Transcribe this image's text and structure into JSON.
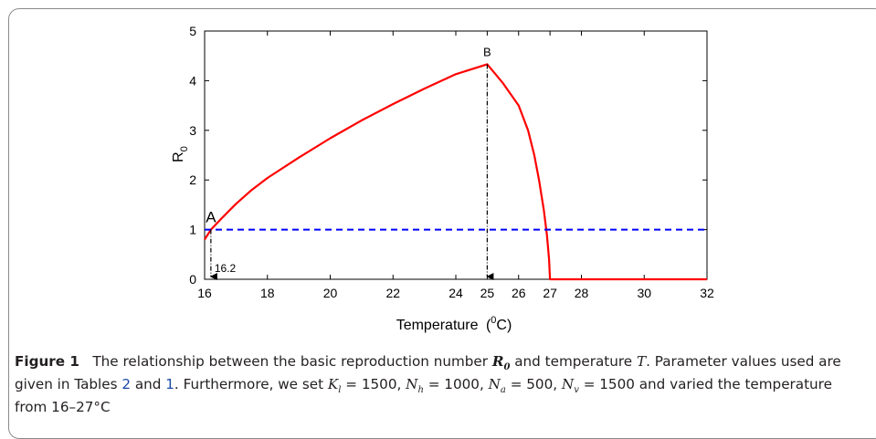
{
  "chart_data": {
    "type": "line",
    "xlabel": "Temperature",
    "xlabel_unit_base": "0",
    "xlabel_unit_suffix": "C",
    "ylabel_main": "R",
    "ylabel_sub": "0",
    "xlim": [
      16,
      32
    ],
    "ylim": [
      0,
      5
    ],
    "x_ticks": [
      "16",
      "18",
      "20",
      "22",
      "24",
      "25",
      "26",
      "27",
      "28",
      "30",
      "32"
    ],
    "y_ticks": [
      "0",
      "1",
      "2",
      "3",
      "4",
      "5"
    ],
    "grid": false,
    "series": [
      {
        "color": "#ff0000",
        "style": "solid",
        "points": [
          [
            16.0,
            0.8
          ],
          [
            16.2,
            1.0
          ],
          [
            16.5,
            1.2
          ],
          [
            17.0,
            1.52
          ],
          [
            17.5,
            1.8
          ],
          [
            18.0,
            2.04
          ],
          [
            19.0,
            2.45
          ],
          [
            20.0,
            2.84
          ],
          [
            21.0,
            3.2
          ],
          [
            22.0,
            3.53
          ],
          [
            23.0,
            3.84
          ],
          [
            24.0,
            4.13
          ],
          [
            25.0,
            4.33
          ],
          [
            25.5,
            3.95
          ],
          [
            26.0,
            3.5
          ],
          [
            26.3,
            3.0
          ],
          [
            26.5,
            2.5
          ],
          [
            26.65,
            2.0
          ],
          [
            26.8,
            1.4
          ],
          [
            26.9,
            0.9
          ],
          [
            26.97,
            0.4
          ],
          [
            27.0,
            0.0
          ],
          [
            32.0,
            0.0
          ]
        ]
      },
      {
        "color": "#0000ff",
        "style": "dashed",
        "points": [
          [
            16.0,
            1.0
          ],
          [
            32.0,
            1.0
          ]
        ]
      }
    ],
    "annotations": [
      {
        "label": "A",
        "x": 16.2,
        "y": 1.0,
        "marker_label": "16.2"
      },
      {
        "label": "B",
        "x": 25.0,
        "y": 4.33
      }
    ]
  },
  "caption": {
    "figure_label": "Figure 1",
    "text_1": "The relationship between the basic reproduction number",
    "r0_symbol": "R",
    "r0_sub": "0",
    "text_2": "and temperature",
    "t_symbol": "T",
    "text_3": ". Parameter values used are given in Tables",
    "table_ref_1": "2",
    "text_and": "and",
    "table_ref_2": "1",
    "text_4": ". Furthermore, we set",
    "kl_sym": "K",
    "kl_sub": "l",
    "kl_val": "= 1500,",
    "nh_sym": "N",
    "nh_sub": "h",
    "nh_val": "= 1000,",
    "na_sym": "N",
    "na_sub": "a",
    "na_val": "= 500,",
    "nv_sym": "N",
    "nv_sub": "v",
    "nv_val": "= 1500",
    "text_5": "and varied the temperature from 16–27°C"
  }
}
